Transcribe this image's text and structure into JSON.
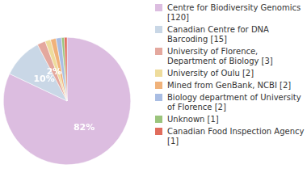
{
  "chart_data": {
    "type": "pie",
    "categories": [
      "Centre for Biodiversity Genomics [120]",
      "Canadian Centre for DNA Barcoding [15]",
      "University of Florence, Department of Biology [3]",
      "University of Oulu [2]",
      "Mined from GenBank, NCBI [2]",
      "Biology department of University of Florence [2]",
      "Unknown [1]",
      "Canadian Food Inspection Agency [1]"
    ],
    "values": [
      82.2,
      10.3,
      2.1,
      1.4,
      1.4,
      1.4,
      0.7,
      0.7
    ],
    "value_labels": [
      "82%",
      "10%",
      "2%",
      null,
      null,
      null,
      null,
      null
    ],
    "colors": [
      "#dcbde0",
      "#c9d7e6",
      "#e4a89e",
      "#eedc9c",
      "#f0b27a",
      "#a9bde3",
      "#9bc47c",
      "#e06c5c"
    ],
    "data_labels": true,
    "legend": "right"
  }
}
